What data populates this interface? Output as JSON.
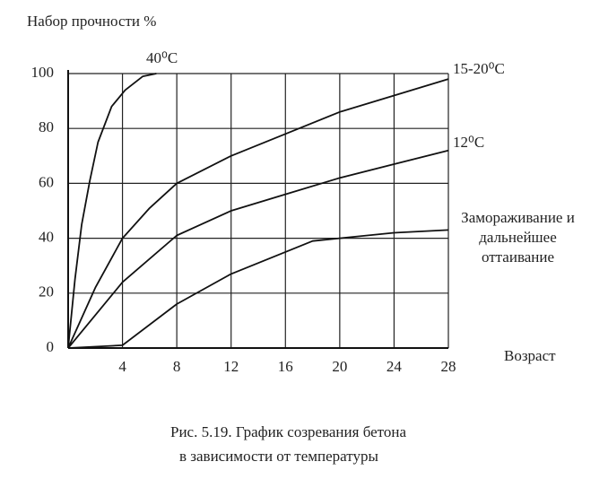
{
  "chart_data": {
    "type": "line",
    "title": "Набор прочности %",
    "xlabel": "Возраст",
    "caption": [
      "Рис. 5.19. График созревания бетона",
      "в зависимости от температуры"
    ],
    "xlim": [
      0,
      28
    ],
    "xticks": [
      4,
      8,
      12,
      16,
      20,
      24,
      28
    ],
    "ylim": [
      0,
      100
    ],
    "yticks": [
      0,
      20,
      40,
      60,
      80,
      100
    ],
    "grid": true,
    "series": [
      {
        "name": "40⁰C",
        "color": "#111111",
        "x": [
          0,
          0.5,
          1,
          1.6,
          2.2,
          3.2,
          4.2,
          5.5,
          6.5
        ],
        "values": [
          0,
          25,
          45,
          61,
          75,
          88,
          94,
          99,
          100
        ]
      },
      {
        "name": "15-20⁰C",
        "color": "#111111",
        "x": [
          0,
          2,
          4,
          6,
          8,
          12,
          16,
          20,
          24,
          28
        ],
        "values": [
          0,
          22,
          40,
          51,
          60,
          70,
          78,
          86,
          92,
          98
        ]
      },
      {
        "name": "12⁰C",
        "color": "#111111",
        "x": [
          0,
          2,
          4,
          8,
          12,
          16,
          20,
          24,
          28
        ],
        "values": [
          0,
          12,
          24,
          41,
          50,
          56,
          62,
          67,
          72
        ]
      },
      {
        "name": "Замораживание и дальнейшее оттаивание",
        "color": "#111111",
        "x": [
          0,
          4,
          8,
          12,
          16,
          18,
          20,
          24,
          28
        ],
        "values": [
          0,
          1,
          16,
          27,
          35,
          39,
          40,
          42,
          43
        ]
      }
    ]
  }
}
